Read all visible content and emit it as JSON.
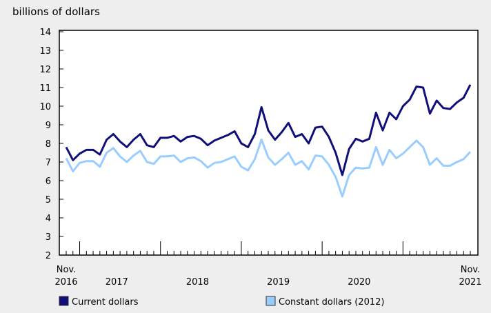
{
  "chart_data": {
    "type": "line",
    "ylabel": "billions of dollars",
    "ylim": [
      2,
      14
    ],
    "yticks": [
      2,
      3,
      4,
      5,
      6,
      7,
      8,
      9,
      10,
      11,
      12,
      13,
      14
    ],
    "x_start": "Nov. 2016",
    "x_end": "Nov. 2021",
    "xtick_labels": [
      {
        "line1": "Nov.",
        "line2": "2016"
      },
      {
        "line1": "",
        "line2": "2017"
      },
      {
        "line1": "",
        "line2": "2018"
      },
      {
        "line1": "",
        "line2": "2019"
      },
      {
        "line1": "",
        "line2": "2020"
      },
      {
        "line1": "Nov.",
        "line2": "2021"
      }
    ],
    "grid": false,
    "legend_position": "bottom",
    "series": [
      {
        "name": "Current dollars",
        "color": "#0f0f7a",
        "values": [
          7.8,
          7.1,
          7.45,
          7.65,
          7.65,
          7.4,
          8.2,
          8.5,
          8.1,
          7.8,
          8.2,
          8.5,
          7.9,
          7.8,
          8.3,
          8.3,
          8.4,
          8.1,
          8.35,
          8.4,
          8.25,
          7.9,
          8.15,
          8.3,
          8.45,
          8.65,
          8.0,
          7.8,
          8.5,
          9.95,
          8.7,
          8.2,
          8.6,
          9.1,
          8.35,
          8.5,
          8.0,
          8.85,
          8.9,
          8.35,
          7.5,
          6.3,
          7.7,
          8.25,
          8.1,
          8.25,
          9.65,
          8.7,
          9.65,
          9.3,
          10.0,
          10.35,
          11.05,
          11.0,
          9.6,
          10.3,
          9.9,
          9.85,
          10.2,
          10.45,
          11.15
        ]
      },
      {
        "name": "Constant dollars (2012)",
        "color": "#99ccff",
        "values": [
          7.2,
          6.5,
          6.95,
          7.05,
          7.05,
          6.75,
          7.5,
          7.75,
          7.3,
          7.0,
          7.35,
          7.6,
          7.0,
          6.9,
          7.3,
          7.3,
          7.35,
          7.0,
          7.2,
          7.25,
          7.05,
          6.7,
          6.95,
          7.0,
          7.15,
          7.3,
          6.75,
          6.55,
          7.15,
          8.2,
          7.25,
          6.85,
          7.15,
          7.5,
          6.85,
          7.05,
          6.6,
          7.35,
          7.3,
          6.85,
          6.2,
          5.15,
          6.3,
          6.7,
          6.65,
          6.7,
          7.8,
          6.85,
          7.65,
          7.2,
          7.45,
          7.8,
          8.15,
          7.8,
          6.85,
          7.2,
          6.8,
          6.8,
          7.0,
          7.15,
          7.55
        ]
      }
    ]
  }
}
